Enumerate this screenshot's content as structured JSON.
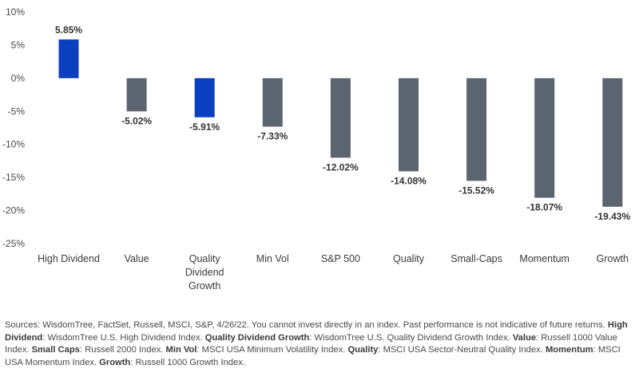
{
  "chart_data": {
    "type": "bar",
    "categories": [
      "High Dividend",
      "Value",
      "Quality Dividend Growth",
      "Min Vol",
      "S&P 500",
      "Quality",
      "Small-Caps",
      "Momentum",
      "Growth"
    ],
    "values": [
      5.85,
      -5.02,
      -5.91,
      -7.33,
      -12.02,
      -14.08,
      -15.52,
      -18.07,
      -19.43
    ],
    "data_labels": [
      "5.85%",
      "-5.02%",
      "-5.91%",
      "-7.33%",
      "-12.02%",
      "-14.08%",
      "-15.52%",
      "-18.07%",
      "-19.43%"
    ],
    "ylim": [
      -25,
      10
    ],
    "yticks": [
      10,
      5,
      0,
      -5,
      -10,
      -15,
      -20,
      -25
    ],
    "ytick_labels": [
      "10%",
      "5%",
      "0%",
      "-5%",
      "-10%",
      "-15%",
      "-20%",
      "-25%"
    ],
    "bar_colors": [
      "#0a40c0",
      "#5b6570",
      "#0a40c0",
      "#5b6570",
      "#5b6570",
      "#5b6570",
      "#5b6570",
      "#5b6570",
      "#5b6570"
    ],
    "grid": false,
    "title": "",
    "xlabel": "",
    "ylabel": ""
  },
  "source_note": [
    {
      "text": "Sources: WisdomTree, FactSet, Russell, MSCI, S&P, 4/26/22. You cannot invest directly in an index. Past performance is not indicative of future returns. ",
      "bold": false
    },
    {
      "text": "High Dividend",
      "bold": true
    },
    {
      "text": ": WisdomTree U.S. High Dividend Index. ",
      "bold": false
    },
    {
      "text": "Quality Dividend Growth",
      "bold": true
    },
    {
      "text": ": WisdomTree U.S. Quality Dividend Growth Index. ",
      "bold": false
    },
    {
      "text": "Value",
      "bold": true
    },
    {
      "text": ": Russell 1000 Value Index. ",
      "bold": false
    },
    {
      "text": "Small Caps",
      "bold": true
    },
    {
      "text": ": Russell 2000 Index. ",
      "bold": false
    },
    {
      "text": "Min Vol",
      "bold": true
    },
    {
      "text": ": MSCI USA Minimum Volatility Index. ",
      "bold": false
    },
    {
      "text": "Quality",
      "bold": true
    },
    {
      "text": ": MSCI USA Sector-Neutral Quality Index. ",
      "bold": false
    },
    {
      "text": "Momentum",
      "bold": true
    },
    {
      "text": ": MSCI USA Momentum Index. ",
      "bold": false
    },
    {
      "text": "Growth",
      "bold": true
    },
    {
      "text": ": Russell 1000 Growth Index.",
      "bold": false
    }
  ]
}
